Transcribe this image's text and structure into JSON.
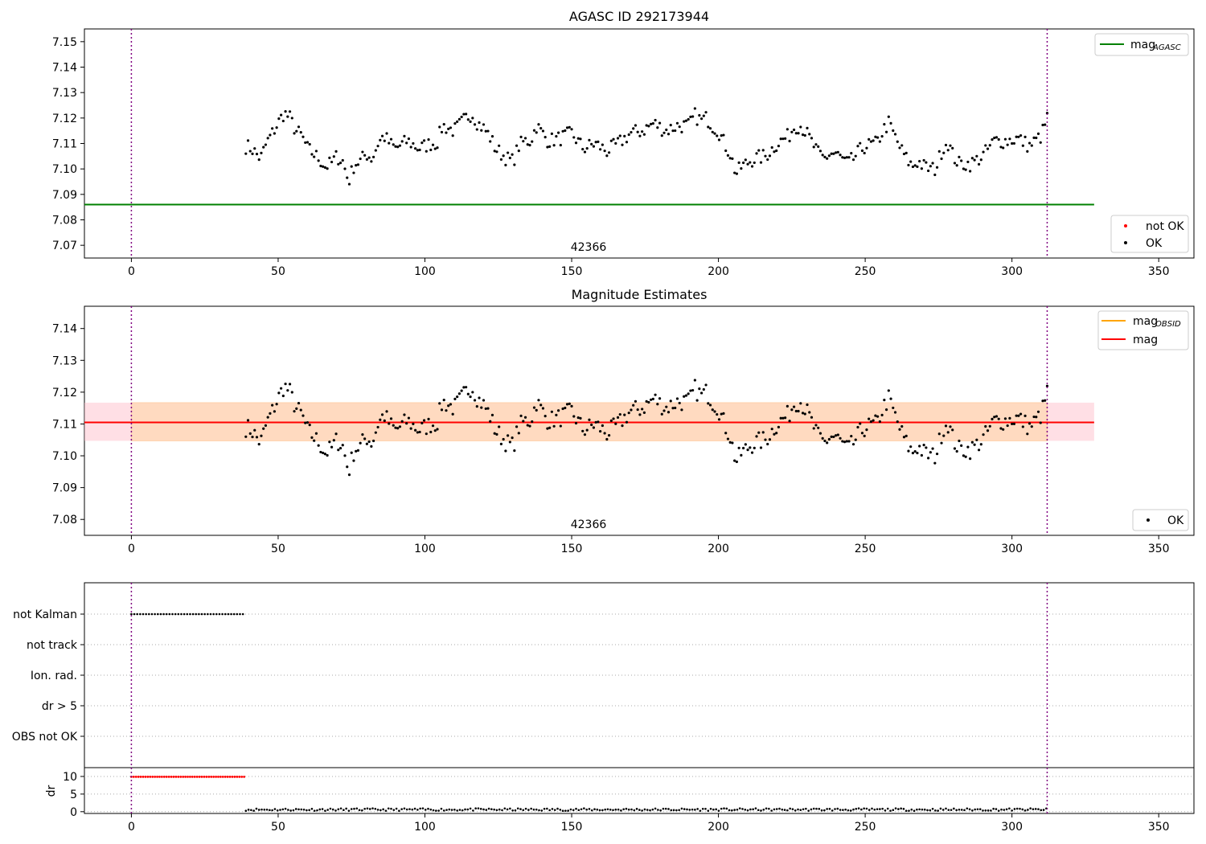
{
  "chart_data": [
    {
      "type": "scatter",
      "title": "AGASC ID 292173944",
      "obsid_label": "42366",
      "xlim": [
        -16,
        362
      ],
      "ylim": [
        7.065,
        7.155
      ],
      "x_ticks": [
        "0",
        "50",
        "100",
        "150",
        "200",
        "250",
        "300",
        "350"
      ],
      "y_ticks": [
        "7.07",
        "7.08",
        "7.09",
        "7.10",
        "7.11",
        "7.12",
        "7.13",
        "7.14",
        "7.15"
      ],
      "vlines": [
        0,
        312
      ],
      "hline": {
        "name": "mag_AGASC",
        "value": 7.086,
        "x_range": [
          -16,
          328
        ],
        "color": "#008000"
      },
      "legends": {
        "top_right": [
          {
            "label": "mag",
            "subscript": "AGASC",
            "color": "#008000",
            "kind": "line"
          }
        ],
        "bottom_right": [
          {
            "label": "not OK",
            "color": "#ff0000",
            "kind": "dot"
          },
          {
            "label": "OK",
            "color": "#000000",
            "kind": "dot"
          }
        ]
      },
      "series": [
        {
          "name": "OK",
          "color": "#000000",
          "x_range": [
            39,
            312
          ],
          "anchors": [
            [
              39,
              7.109
            ],
            [
              41,
              7.108
            ],
            [
              44,
              7.104
            ],
            [
              46,
              7.11
            ],
            [
              48,
              7.114
            ],
            [
              50,
              7.118
            ],
            [
              52,
              7.122
            ],
            [
              54,
              7.12
            ],
            [
              56,
              7.115
            ],
            [
              58,
              7.113
            ],
            [
              60,
              7.108
            ],
            [
              62,
              7.106
            ],
            [
              64,
              7.104
            ],
            [
              66,
              7.101
            ],
            [
              68,
              7.102
            ],
            [
              70,
              7.105
            ],
            [
              72,
              7.103
            ],
            [
              74,
              7.095
            ],
            [
              76,
              7.102
            ],
            [
              78,
              7.103
            ],
            [
              80,
              7.106
            ],
            [
              82,
              7.104
            ],
            [
              84,
              7.11
            ],
            [
              86,
              7.113
            ],
            [
              88,
              7.11
            ],
            [
              90,
              7.108
            ],
            [
              94,
              7.111
            ],
            [
              98,
              7.108
            ],
            [
              102,
              7.11
            ],
            [
              104,
              7.11
            ],
            [
              106,
              7.117
            ],
            [
              110,
              7.115
            ],
            [
              114,
              7.12
            ],
            [
              116,
              7.122
            ],
            [
              118,
              7.118
            ],
            [
              120,
              7.116
            ],
            [
              122,
              7.113
            ],
            [
              124,
              7.108
            ],
            [
              126,
              7.106
            ],
            [
              128,
              7.104
            ],
            [
              130,
              7.103
            ],
            [
              132,
              7.109
            ],
            [
              134,
              7.111
            ],
            [
              136,
              7.111
            ],
            [
              138,
              7.117
            ],
            [
              140,
              7.114
            ],
            [
              142,
              7.111
            ],
            [
              146,
              7.112
            ],
            [
              150,
              7.114
            ],
            [
              154,
              7.108
            ],
            [
              158,
              7.11
            ],
            [
              162,
              7.107
            ],
            [
              166,
              7.11
            ],
            [
              170,
              7.114
            ],
            [
              174,
              7.115
            ],
            [
              178,
              7.118
            ],
            [
              182,
              7.115
            ],
            [
              186,
              7.117
            ],
            [
              190,
              7.117
            ],
            [
              192,
              7.121
            ],
            [
              194,
              7.119
            ],
            [
              196,
              7.12
            ],
            [
              198,
              7.117
            ],
            [
              200,
              7.115
            ],
            [
              202,
              7.11
            ],
            [
              204,
              7.106
            ],
            [
              206,
              7.098
            ],
            [
              208,
              7.101
            ],
            [
              212,
              7.104
            ],
            [
              216,
              7.105
            ],
            [
              220,
              7.11
            ],
            [
              224,
              7.113
            ],
            [
              226,
              7.117
            ],
            [
              228,
              7.117
            ],
            [
              230,
              7.114
            ],
            [
              232,
              7.11
            ],
            [
              234,
              7.106
            ],
            [
              236,
              7.104
            ],
            [
              238,
              7.106
            ],
            [
              240,
              7.106
            ],
            [
              242,
              7.104
            ],
            [
              244,
              7.102
            ],
            [
              246,
              7.104
            ],
            [
              248,
              7.107
            ],
            [
              250,
              7.109
            ],
            [
              254,
              7.11
            ],
            [
              256,
              7.115
            ],
            [
              258,
              7.118
            ],
            [
              260,
              7.113
            ],
            [
              262,
              7.108
            ],
            [
              264,
              7.104
            ],
            [
              266,
              7.101
            ],
            [
              268,
              7.103
            ],
            [
              270,
              7.101
            ],
            [
              272,
              7.1
            ],
            [
              274,
              7.1
            ],
            [
              276,
              7.107
            ],
            [
              278,
              7.111
            ],
            [
              280,
              7.105
            ],
            [
              282,
              7.102
            ],
            [
              286,
              7.102
            ],
            [
              290,
              7.105
            ],
            [
              294,
              7.111
            ],
            [
              298,
              7.111
            ],
            [
              302,
              7.112
            ],
            [
              306,
              7.109
            ],
            [
              310,
              7.113
            ],
            [
              312,
              7.12
            ]
          ]
        },
        {
          "name": "not OK",
          "color": "#ff0000",
          "values": []
        }
      ]
    },
    {
      "type": "scatter",
      "title": "Magnitude Estimates",
      "obsid_label": "42366",
      "xlim": [
        -16,
        362
      ],
      "ylim": [
        7.075,
        7.147
      ],
      "x_ticks": [
        "0",
        "50",
        "100",
        "150",
        "200",
        "250",
        "300",
        "350"
      ],
      "y_ticks": [
        "7.08",
        "7.09",
        "7.10",
        "7.11",
        "7.12",
        "7.13",
        "7.14"
      ],
      "vlines": [
        0,
        312
      ],
      "mag_line": {
        "name": "mag",
        "value": 7.1105,
        "x_range": [
          -16,
          328
        ],
        "color": "#ff0000"
      },
      "mag_band": {
        "low": 7.1047,
        "high": 7.1167,
        "x_range": [
          -16,
          328
        ],
        "color": "#ffc0cb"
      },
      "obsid_line": {
        "name": "mag_OBSID",
        "value": 7.1105,
        "x_range": [
          0,
          312
        ],
        "color": "#ffa500"
      },
      "obsid_band": {
        "low": 7.1047,
        "high": 7.1167,
        "x_range": [
          0,
          312
        ],
        "color": "#ffd8a8"
      },
      "legends": {
        "top_right": [
          {
            "label": "mag",
            "subscript": "OBSID",
            "color": "#ffa500",
            "kind": "line"
          },
          {
            "label": "mag",
            "subscript": "",
            "color": "#ff0000",
            "kind": "line"
          }
        ],
        "bottom_right": [
          {
            "label": "OK",
            "color": "#000000",
            "kind": "dot"
          }
        ]
      }
    },
    {
      "type": "scatter",
      "title": "",
      "xlim": [
        -16,
        362
      ],
      "x_ticks": [
        "0",
        "50",
        "100",
        "150",
        "200",
        "250",
        "300",
        "350"
      ],
      "vlines": [
        0,
        312
      ],
      "flag_labels": [
        "not Kalman",
        "not track",
        "Ion. rad.",
        "dr > 5",
        "OBS not OK"
      ],
      "not_kalman_x_range": [
        0,
        38.5
      ],
      "dr": {
        "ylabel": "dr",
        "ylim": [
          -0.5,
          12.5
        ],
        "y_ticks": [
          "0",
          "5",
          "10"
        ],
        "red_value": 9.9,
        "red_x_range": [
          0,
          38.5
        ],
        "black_x_range": [
          39,
          312
        ],
        "black_level": 0.6
      }
    }
  ]
}
